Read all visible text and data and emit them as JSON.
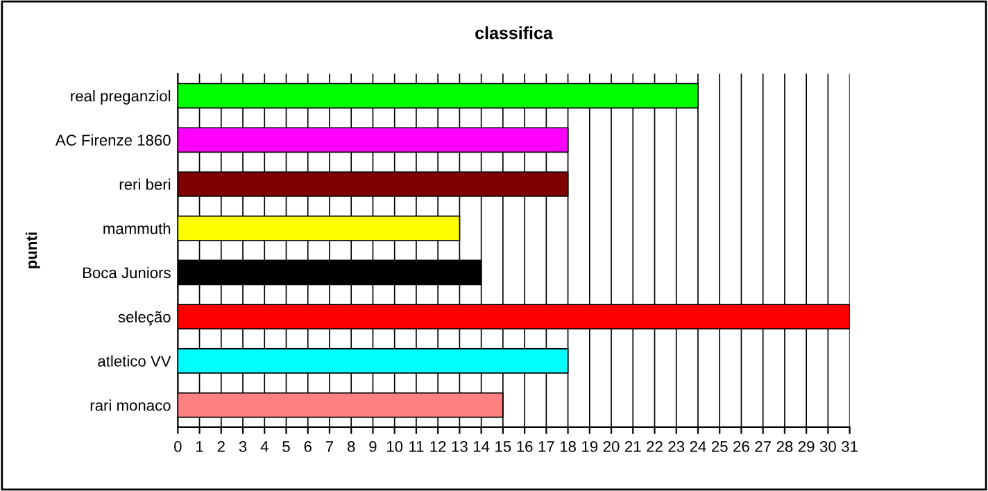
{
  "chart_data": {
    "type": "bar",
    "orientation": "horizontal",
    "title": "classifica",
    "ylabel": "punti",
    "categories": [
      "real preganziol",
      "AC Firenze 1860",
      "reri beri",
      "mammuth",
      "Boca Juniors",
      "seleção",
      "atletico VV",
      "rari monaco"
    ],
    "values": [
      24,
      18,
      18,
      13,
      14,
      31,
      18,
      15
    ],
    "colors": [
      "#00ff00",
      "#ff00ff",
      "#800000",
      "#ffff00",
      "#000000",
      "#ff0000",
      "#00ffff",
      "#ff8080"
    ],
    "xlim": [
      0,
      31
    ],
    "xticks": [
      0,
      1,
      2,
      3,
      4,
      5,
      6,
      7,
      8,
      9,
      10,
      11,
      12,
      13,
      14,
      15,
      16,
      17,
      18,
      19,
      20,
      21,
      22,
      23,
      24,
      25,
      26,
      27,
      28,
      29,
      30,
      31
    ],
    "grid": "x",
    "legend": false
  }
}
